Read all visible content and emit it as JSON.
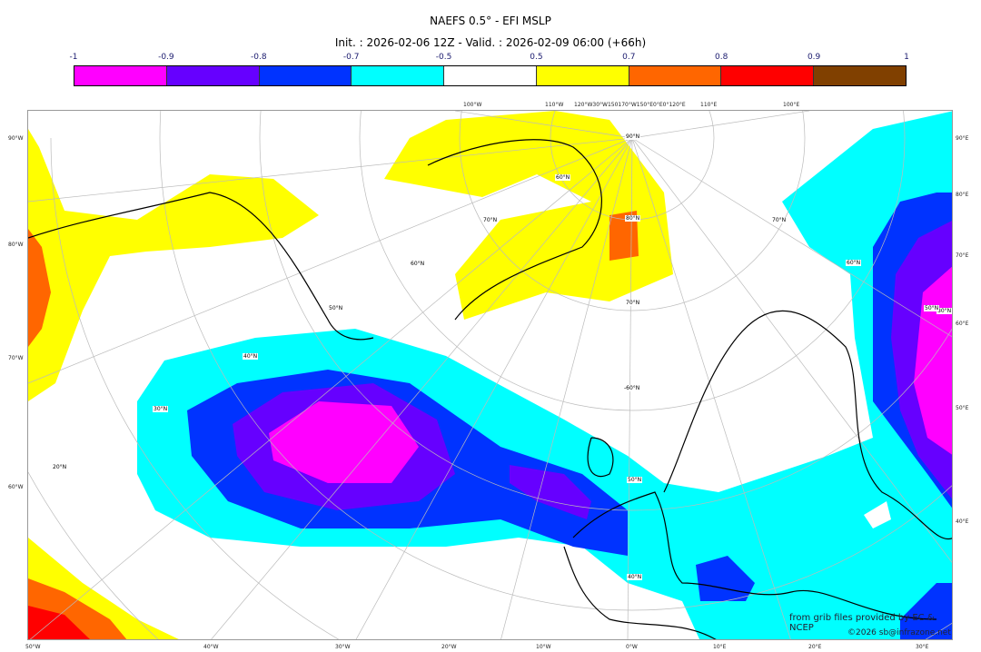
{
  "title": "NAEFS 0.5° - EFI MSLP",
  "subtitle": "Init. : 2026-02-06 12Z - Valid. : 2026-02-09 06:00 (+66h)",
  "colorbar": {
    "labels": [
      "-1",
      "-0.9",
      "-0.8",
      "-0.7",
      "-0.5",
      "0.5",
      "0.7",
      "0.8",
      "0.9",
      "1"
    ],
    "colors": [
      "#ff00ff",
      "#6600ff",
      "#0033ff",
      "#00ffff",
      "#ffffff",
      "#ffff00",
      "#ff6600",
      "#ff0000",
      "#804000"
    ]
  },
  "axes": {
    "bottom": [
      "50°W",
      "40°W",
      "30°W",
      "20°W",
      "10°W",
      "0°W",
      "10°E",
      "20°E",
      "30°E"
    ],
    "left": [
      "90°W",
      "80°W",
      "70°W",
      "60°W"
    ],
    "right": [
      "90°E",
      "80°E",
      "70°E",
      "60°E",
      "50°E",
      "40°E"
    ],
    "top": [
      "100°W",
      "110°W",
      "120°W30°W150170°W150°E0°E0°120°E",
      "110°E",
      "100°E"
    ]
  },
  "latitude_labels": [
    "90°N",
    "80°N",
    "80°N",
    "70°N",
    "70°N",
    "70°N",
    "60°N",
    "60°N",
    "60°N",
    "50°N",
    "50°N",
    "50°N",
    "40°N",
    "40°N",
    "30°N",
    "20°N",
    "-60°N"
  ],
  "credits": {
    "source": "from grib files provided by EC & NCEP",
    "copyright": "©2026 sb@infrazone.net"
  }
}
